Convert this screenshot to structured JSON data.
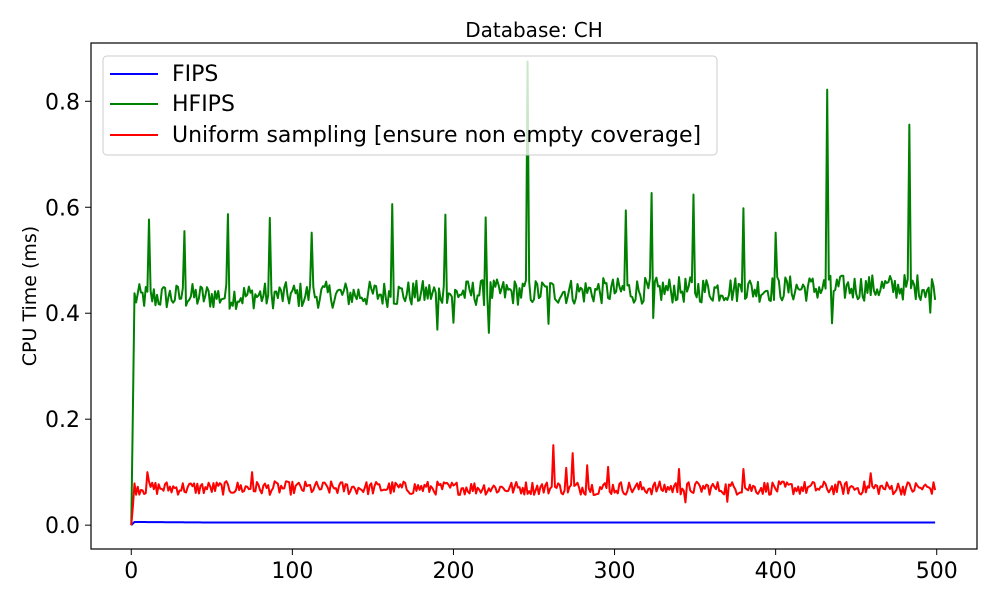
{
  "chart_data": {
    "type": "line",
    "title": "Database: CH",
    "xlabel": "",
    "ylabel": "CPU Time (ms)",
    "xlim": [
      -25,
      525
    ],
    "ylim": [
      -0.045,
      0.91
    ],
    "xticks": [
      0,
      100,
      200,
      300,
      400,
      500
    ],
    "yticks": [
      0.0,
      0.2,
      0.4,
      0.6,
      0.8
    ],
    "xtick_labels": [
      "0",
      "100",
      "200",
      "300",
      "400",
      "500"
    ],
    "ytick_labels": [
      "0.0",
      "0.2",
      "0.4",
      "0.6",
      "0.8"
    ],
    "legend_position": "top-left",
    "grid": false,
    "series": [
      {
        "name": "FIPS",
        "color": "#0000ff",
        "base_x": [
          0,
          2,
          50,
          100,
          150,
          200,
          250,
          300,
          350,
          400,
          450,
          499
        ],
        "base_y": [
          0.0,
          0.006,
          0.005,
          0.005,
          0.005,
          0.005,
          0.005,
          0.005,
          0.005,
          0.005,
          0.005,
          0.005
        ],
        "x": [
          0,
          2,
          499
        ],
        "y": [
          0.0,
          0.006,
          0.005
        ],
        "noise": 0.0
      },
      {
        "name": "HFIPS",
        "color": "#008000",
        "base_x": [
          0,
          2,
          499
        ],
        "base_y": [
          0.0,
          0.43,
          0.45
        ],
        "noise": 0.025,
        "spikes_x": [
          11,
          33,
          60,
          86,
          112,
          162,
          195,
          220,
          246,
          307,
          323,
          349,
          380,
          400,
          432,
          483
        ],
        "spikes_y": [
          0.577,
          0.555,
          0.587,
          0.58,
          0.552,
          0.606,
          0.586,
          0.581,
          0.875,
          0.594,
          0.627,
          0.624,
          0.598,
          0.552,
          0.822,
          0.756
        ],
        "dips_x": [
          190,
          200,
          222,
          259,
          324,
          435,
          496
        ],
        "dips_y": [
          0.369,
          0.382,
          0.363,
          0.38,
          0.391,
          0.381,
          0.401
        ]
      },
      {
        "name": "Uniform sampling [ensure non empty coverage]",
        "color": "#ff0000",
        "base_x": [
          0,
          2,
          499
        ],
        "base_y": [
          0.0,
          0.07,
          0.07
        ],
        "noise": 0.013,
        "spikes_x": [
          10,
          75,
          262,
          270,
          274,
          283,
          296,
          340,
          380,
          459
        ],
        "spikes_y": [
          0.1,
          0.1,
          0.151,
          0.108,
          0.136,
          0.113,
          0.11,
          0.106,
          0.106,
          0.098
        ],
        "dips_x": [
          344,
          370
        ],
        "dips_y": [
          0.043,
          0.044
        ]
      }
    ]
  }
}
